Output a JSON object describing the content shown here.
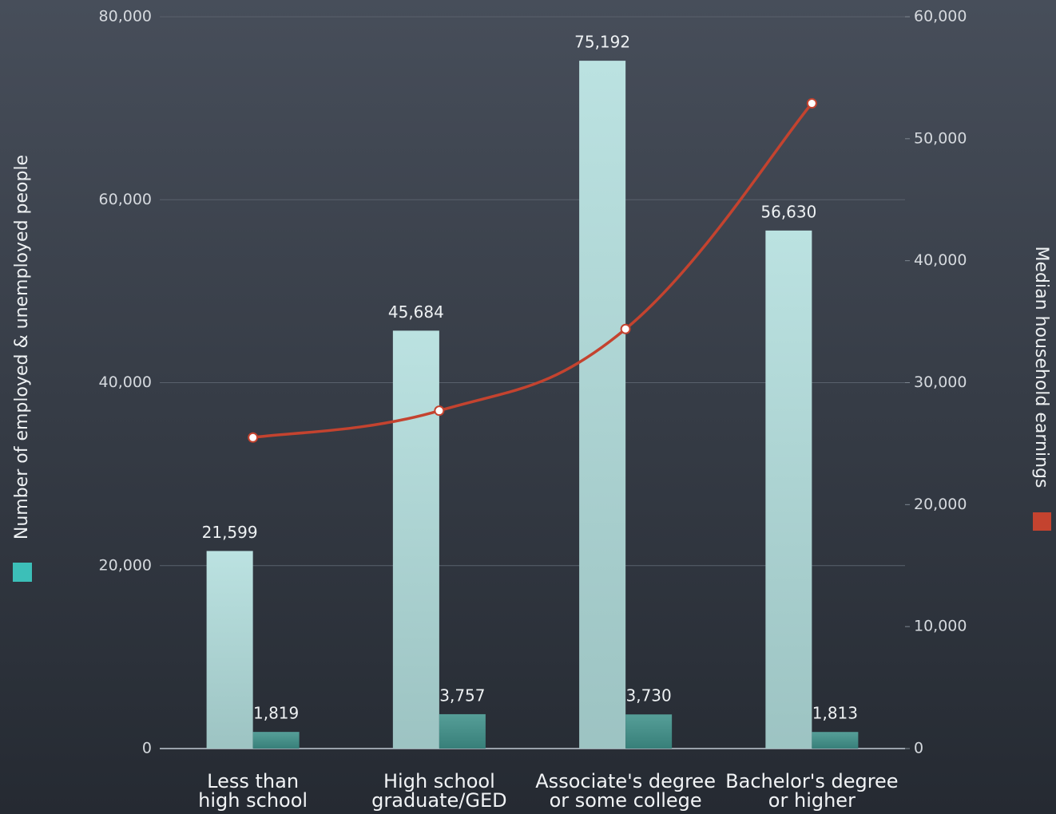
{
  "chart_data": {
    "type": "bar",
    "categories": [
      "Less than\nhigh school",
      "High school\ngraduate/GED",
      "Associate's degree\nor some college",
      "Bachelor's degree\nor higher"
    ],
    "y_label": "Number of employed & unemployed people",
    "series": [
      {
        "color": "#b2dedd",
        "values": [
          21599,
          45684,
          75192,
          56630
        ],
        "value_labels": [
          "21,599",
          "45,684",
          "75,192",
          "56,630"
        ]
      },
      {
        "color": "#3f918a",
        "values": [
          1819,
          3757,
          3730,
          1813
        ],
        "value_labels": [
          "1,819",
          "3,757",
          "3,730",
          "1,813"
        ]
      },
      {
        "name": "Median household earnings",
        "type": "line",
        "axis": "y2",
        "color": "#c4432f",
        "values": [
          25500,
          27700,
          34400,
          52900
        ]
      }
    ],
    "ylim": [
      0,
      80000
    ],
    "yticks": [
      0,
      {
        "value": 20000,
        "label": "20,000"
      },
      {
        "value": 40000,
        "label": "40,000"
      },
      {
        "value": 60000,
        "label": "60,000"
      },
      {
        "value": 80000,
        "label": "80,000"
      }
    ],
    "y2lim": [
      0,
      60000
    ],
    "y2ticks": [
      0,
      {
        "value": 10000,
        "label": "10,000"
      },
      {
        "value": 20000,
        "label": "20,000"
      },
      {
        "value": 30000,
        "label": "30,000"
      },
      {
        "value": 40000,
        "label": "40,000"
      },
      {
        "value": 50000,
        "label": "50,000"
      },
      {
        "value": 60000,
        "label": "60,000"
      }
    ],
    "grid": true
  }
}
